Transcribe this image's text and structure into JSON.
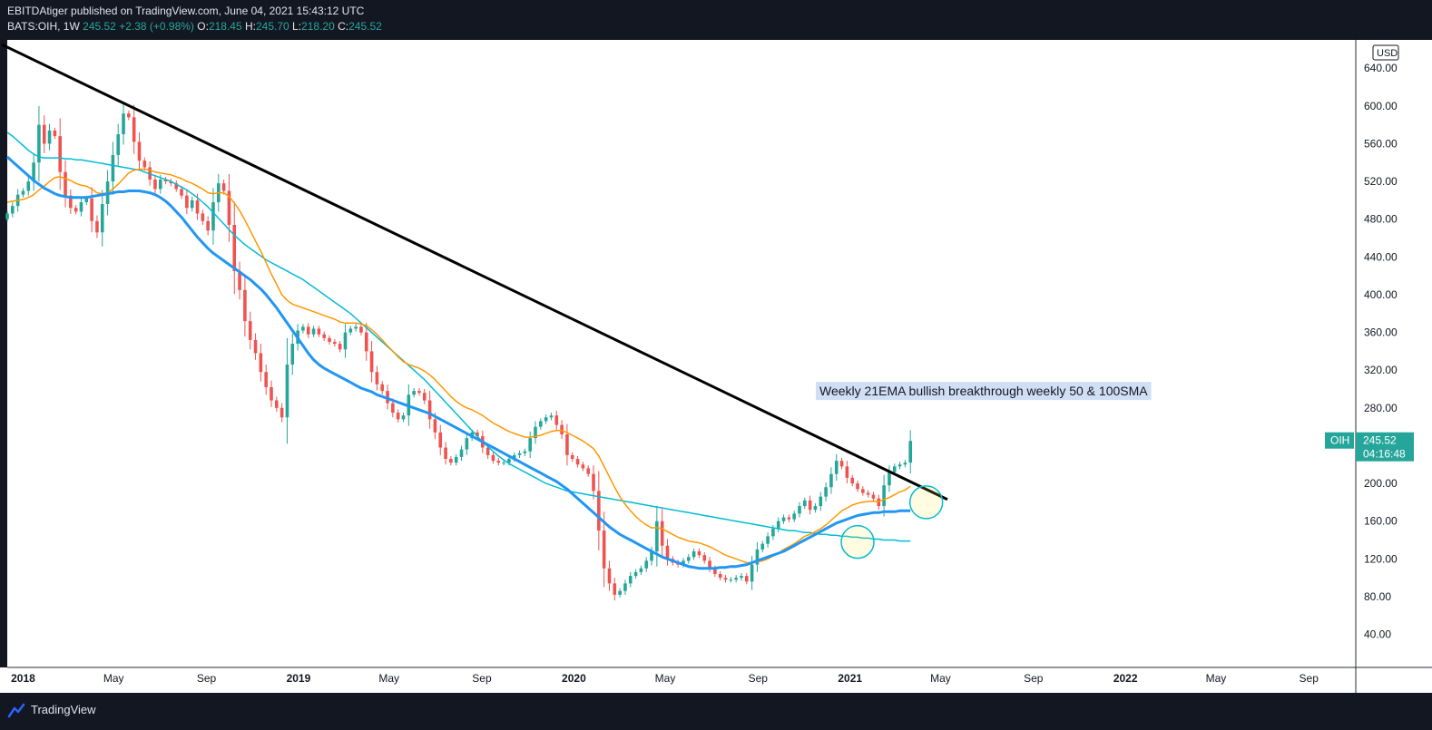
{
  "header": {
    "publisher": "EBITDAtiger published on TradingView.com, June 04, 2021 15:43:12 UTC",
    "symbol": "BATS:OIH, 1W",
    "last": "245.52",
    "change": "+2.38 (+0.98%)",
    "o_label": "O:",
    "o": "218.45",
    "h_label": "H:",
    "h": "245.70",
    "l_label": "L:",
    "l": "218.20",
    "c_label": "C:",
    "c": "245.52"
  },
  "footer": {
    "brand": "TradingView"
  },
  "colors": {
    "background": "#131722",
    "up": "#26a69a",
    "down": "#ef5350",
    "ema21": "#ff9800",
    "sma50": "#2196f3",
    "sma100": "#00bcd4",
    "trendline": "#000000",
    "annotation_bg": "#c5d7f2"
  },
  "chart_data": {
    "type": "candlestick",
    "title": "",
    "x_labels": [
      "2018",
      "May",
      "Sep",
      "2019",
      "May",
      "Sep",
      "2020",
      "May",
      "Sep",
      "2021",
      "May",
      "Sep",
      "2022",
      "May",
      "Sep"
    ],
    "x_label_dates": [
      "2018-01",
      "2018-05",
      "2018-09",
      "2019-01",
      "2019-05",
      "2019-09",
      "2020-01",
      "2020-05",
      "2020-09",
      "2021-01",
      "2021-05",
      "2021-09",
      "2022-01",
      "2022-05",
      "2022-09"
    ],
    "y_ticks": [
      40,
      80,
      120,
      160,
      200,
      240,
      280,
      320,
      360,
      400,
      440,
      480,
      520,
      560,
      600,
      640
    ],
    "y_tick_labels": [
      "40.00",
      "80.00",
      "120.00",
      "160.00",
      "200.00",
      "",
      "280.00",
      "320.00",
      "360.00",
      "400.00",
      "440.00",
      "480.00",
      "520.00",
      "560.00",
      "600.00",
      "640.00"
    ],
    "ylim": [
      5,
      670
    ],
    "currency": "USD",
    "symbol_tag": "OIH",
    "last_price_label": "245.52",
    "countdown": "04:16:48",
    "last_price": 245.52,
    "annotation": "Weekly 21EMA bullish breakthrough weekly 50 & 100SMA",
    "closes": [
      486,
      494,
      506,
      510,
      520,
      540,
      580,
      560,
      574,
      568,
      530,
      505,
      492,
      488,
      498,
      502,
      478,
      466,
      496,
      520,
      548,
      570,
      592,
      588,
      562,
      542,
      535,
      522,
      512,
      522,
      520,
      518,
      512,
      505,
      492,
      500,
      486,
      478,
      468,
      498,
      518,
      510,
      474,
      425,
      405,
      372,
      352,
      338,
      318,
      302,
      288,
      280,
      270,
      326,
      348,
      362,
      366,
      358,
      364,
      358,
      354,
      350,
      348,
      342,
      360,
      364,
      366,
      360,
      340,
      318,
      305,
      298,
      285,
      275,
      268,
      272,
      294,
      298,
      296,
      288,
      268,
      254,
      238,
      226,
      222,
      228,
      236,
      248,
      254,
      250,
      238,
      230,
      224,
      222,
      222,
      226,
      230,
      232,
      234,
      248,
      260,
      266,
      270,
      272,
      262,
      252,
      230,
      226,
      220,
      216,
      210,
      192,
      150,
      110,
      94,
      82,
      86,
      94,
      102,
      106,
      110,
      118,
      128,
      160,
      134,
      120,
      116,
      114,
      118,
      122,
      128,
      124,
      118,
      110,
      104,
      100,
      98,
      98,
      100,
      102,
      96,
      114,
      130,
      136,
      144,
      152,
      160,
      164,
      162,
      168,
      176,
      182,
      172,
      176,
      186,
      196,
      210,
      224,
      218,
      206,
      200,
      194,
      190,
      188,
      184,
      176,
      198,
      212,
      218,
      220,
      222,
      245
    ],
    "ema21": [
      498,
      499,
      500,
      501,
      503,
      506,
      511,
      515,
      520,
      524,
      525,
      523,
      521,
      518,
      516,
      515,
      512,
      508,
      507,
      508,
      512,
      517,
      523,
      529,
      532,
      533,
      533,
      532,
      530,
      529,
      528,
      527,
      525,
      523,
      520,
      518,
      515,
      512,
      508,
      507,
      508,
      508,
      504,
      497,
      489,
      479,
      468,
      457,
      446,
      434,
      422,
      411,
      400,
      394,
      390,
      388,
      386,
      384,
      382,
      380,
      378,
      376,
      374,
      371,
      370,
      370,
      370,
      369,
      367,
      363,
      358,
      352,
      346,
      340,
      334,
      329,
      326,
      324,
      322,
      319,
      315,
      310,
      304,
      298,
      292,
      287,
      283,
      280,
      278,
      275,
      272,
      268,
      264,
      261,
      258,
      255,
      253,
      251,
      249,
      249,
      250,
      251,
      253,
      255,
      256,
      256,
      254,
      251,
      248,
      245,
      241,
      237,
      229,
      218,
      207,
      196,
      186,
      178,
      171,
      165,
      160,
      156,
      153,
      153,
      152,
      149,
      146,
      143,
      141,
      139,
      138,
      137,
      135,
      133,
      130,
      127,
      124,
      122,
      120,
      118,
      116,
      116,
      117,
      118,
      120,
      123,
      126,
      130,
      133,
      136,
      140,
      144,
      146,
      149,
      152,
      156,
      161,
      166,
      171,
      174,
      177,
      179,
      180,
      181,
      181,
      181,
      183,
      185,
      188,
      191,
      193,
      197
    ],
    "sma50": [
      546,
      541,
      536,
      531,
      526,
      521,
      517,
      513,
      510,
      507,
      505,
      504,
      503,
      503,
      503,
      503,
      504,
      505,
      506,
      507,
      508,
      509,
      509,
      510,
      510,
      510,
      509,
      508,
      506,
      503,
      499,
      494,
      488,
      482,
      475,
      468,
      461,
      455,
      449,
      444,
      440,
      436,
      432,
      428,
      424,
      420,
      416,
      411,
      406,
      400,
      393,
      386,
      378,
      370,
      362,
      354,
      346,
      338,
      331,
      326,
      322,
      319,
      316,
      313,
      310,
      307,
      304,
      301,
      299,
      297,
      294,
      292,
      290,
      288,
      286,
      284,
      282,
      280,
      278,
      276,
      274,
      271,
      268,
      265,
      262,
      259,
      256,
      253,
      250,
      247,
      244,
      241,
      238,
      235,
      232,
      229,
      226,
      223,
      220,
      217,
      214,
      211,
      208,
      205,
      202,
      198,
      194,
      189,
      184,
      179,
      174,
      169,
      164,
      159,
      154,
      150,
      146,
      143,
      140,
      137,
      134,
      131,
      128,
      125,
      122,
      120,
      118,
      116,
      114,
      112,
      111,
      110,
      110,
      110,
      110,
      111,
      111,
      112,
      112,
      113,
      114,
      116,
      118,
      120,
      122,
      124,
      126,
      128,
      131,
      134,
      137,
      140,
      143,
      146,
      149,
      152,
      155,
      158,
      160,
      162,
      164,
      166,
      167,
      168,
      169,
      169,
      170,
      170,
      170,
      171,
      171,
      171
    ],
    "sma100": [
      572,
      568,
      563,
      558,
      553,
      549,
      546,
      545,
      545,
      545,
      545,
      544,
      544,
      543,
      543,
      542,
      541,
      540,
      539,
      538,
      537,
      536,
      535,
      534,
      533,
      532,
      530,
      528,
      526,
      524,
      522,
      520,
      517,
      514,
      511,
      507,
      503,
      498,
      493,
      487,
      481,
      475,
      469,
      463,
      458,
      453,
      449,
      445,
      441,
      437,
      434,
      431,
      428,
      425,
      422,
      419,
      416,
      412,
      408,
      404,
      400,
      396,
      392,
      388,
      384,
      380,
      375,
      370,
      365,
      360,
      355,
      350,
      345,
      340,
      335,
      330,
      325,
      320,
      315,
      310,
      304,
      298,
      292,
      286,
      280,
      274,
      268,
      262,
      256,
      250,
      244,
      239,
      234,
      229,
      225,
      221,
      218,
      215,
      212,
      209,
      206,
      203,
      200,
      198,
      196,
      194,
      192,
      191,
      190,
      189,
      188,
      187,
      186,
      185,
      184,
      183,
      182,
      181,
      180,
      179,
      178,
      177,
      176,
      175,
      174,
      173,
      172,
      171,
      170,
      169,
      168,
      167,
      166,
      165,
      164,
      163,
      162,
      161,
      160,
      159,
      158,
      157,
      156,
      155,
      154,
      153,
      152,
      151,
      150,
      150,
      149,
      148,
      148,
      147,
      146,
      146,
      145,
      145,
      144,
      144,
      143,
      143,
      142,
      142,
      141,
      141,
      140,
      140,
      140,
      139,
      139,
      139
    ]
  }
}
